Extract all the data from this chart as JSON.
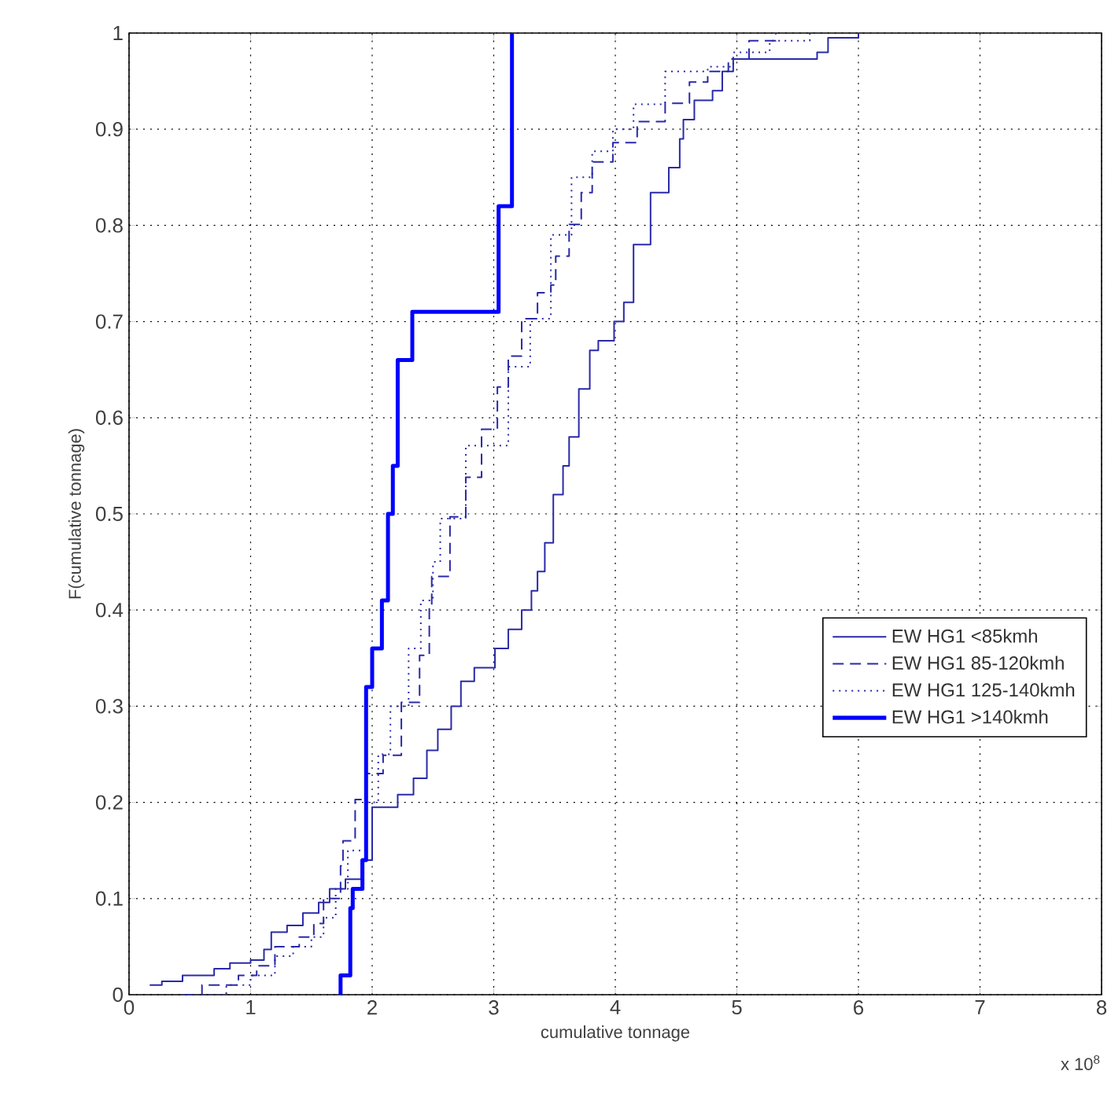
{
  "chart_data": {
    "type": "step",
    "xlabel": "cumulative tonnage",
    "ylabel": "F(cumulative tonnage)",
    "annotations": [
      "x 10$^{8}$"
    ],
    "xlim": [
      0,
      8
    ],
    "ylim": [
      0,
      1
    ],
    "xticks": [
      0,
      1,
      2,
      3,
      4,
      5,
      6,
      7,
      8
    ],
    "yticks": [
      0,
      0.1,
      0.2,
      0.3,
      0.4,
      0.5,
      0.6,
      0.7,
      0.8,
      0.9,
      1
    ],
    "grid": true,
    "legend": "right",
    "series": [
      {
        "name": "EW HG1 <85kmh",
        "color": "#2a2aa8",
        "line_style": "solid",
        "x": [
          0.17,
          0.27,
          0.44,
          0.7,
          0.83,
          1.0,
          1.11,
          1.17,
          1.3,
          1.43,
          1.56,
          1.65,
          1.78,
          1.91,
          2.0,
          2.21,
          2.34,
          2.45,
          2.54,
          2.65,
          2.73,
          2.84,
          3.01,
          3.12,
          3.23,
          3.31,
          3.36,
          3.42,
          3.49,
          3.57,
          3.62,
          3.7,
          3.79,
          3.86,
          3.99,
          4.07,
          4.15,
          4.29,
          4.44,
          4.53,
          4.56,
          4.65,
          4.8,
          4.88,
          4.97,
          5.66,
          5.75,
          6.0
        ],
        "values": [
          0.01,
          0.014,
          0.02,
          0.027,
          0.033,
          0.036,
          0.047,
          0.065,
          0.072,
          0.085,
          0.096,
          0.11,
          0.12,
          0.14,
          0.195,
          0.208,
          0.225,
          0.254,
          0.276,
          0.3,
          0.326,
          0.34,
          0.36,
          0.38,
          0.4,
          0.42,
          0.44,
          0.47,
          0.52,
          0.55,
          0.58,
          0.63,
          0.67,
          0.68,
          0.7,
          0.72,
          0.78,
          0.834,
          0.86,
          0.89,
          0.91,
          0.93,
          0.94,
          0.96,
          0.973,
          0.98,
          0.995,
          1.0
        ]
      },
      {
        "name": "EW HG1 85-120kmh",
        "color": "#2a2aa8",
        "line_style": "dashed",
        "x": [
          0.45,
          0.6,
          0.9,
          1.05,
          1.2,
          1.4,
          1.52,
          1.6,
          1.74,
          1.76,
          1.86,
          1.95,
          2.09,
          2.24,
          2.39,
          2.47,
          2.49,
          2.64,
          2.77,
          2.9,
          3.03,
          3.12,
          3.23,
          3.36,
          3.47,
          3.51,
          3.62,
          3.72,
          3.81,
          3.98,
          4.18,
          4.41,
          4.61,
          4.76,
          4.93,
          5.1,
          5.32
        ],
        "values": [
          0.0,
          0.01,
          0.02,
          0.03,
          0.05,
          0.06,
          0.074,
          0.1,
          0.134,
          0.16,
          0.203,
          0.23,
          0.249,
          0.304,
          0.353,
          0.402,
          0.435,
          0.497,
          0.538,
          0.588,
          0.632,
          0.664,
          0.703,
          0.73,
          0.738,
          0.768,
          0.801,
          0.834,
          0.866,
          0.886,
          0.908,
          0.927,
          0.949,
          0.96,
          0.973,
          0.992,
          1.0
        ]
      },
      {
        "name": "EW HG1 125-140kmh",
        "color": "#2a2aa8",
        "line_style": "dotted",
        "x": [
          0.6,
          0.8,
          1.0,
          1.2,
          1.35,
          1.5,
          1.6,
          1.7,
          1.8,
          1.95,
          2.05,
          2.15,
          2.3,
          2.4,
          2.5,
          2.56,
          2.77,
          3.12,
          3.3,
          3.47,
          3.64,
          3.81,
          3.98,
          4.15,
          4.41,
          4.76,
          4.97,
          5.27,
          5.6
        ],
        "values": [
          0.0,
          0.01,
          0.02,
          0.04,
          0.05,
          0.06,
          0.08,
          0.11,
          0.15,
          0.2,
          0.25,
          0.3,
          0.36,
          0.41,
          0.45,
          0.495,
          0.571,
          0.653,
          0.703,
          0.79,
          0.85,
          0.877,
          0.9,
          0.926,
          0.96,
          0.965,
          0.98,
          0.992,
          1.0
        ]
      },
      {
        "name": "EW HG1 >140kmh",
        "color": "#0000ff",
        "line_style": "solid",
        "x": [
          1.74,
          1.74,
          1.82,
          1.84,
          1.92,
          1.95,
          2.0,
          2.08,
          2.13,
          2.17,
          2.21,
          2.33,
          3.04,
          3.15
        ],
        "values": [
          0.0,
          0.02,
          0.09,
          0.11,
          0.14,
          0.32,
          0.36,
          0.41,
          0.5,
          0.55,
          0.66,
          0.71,
          0.82,
          1.0
        ]
      }
    ]
  }
}
